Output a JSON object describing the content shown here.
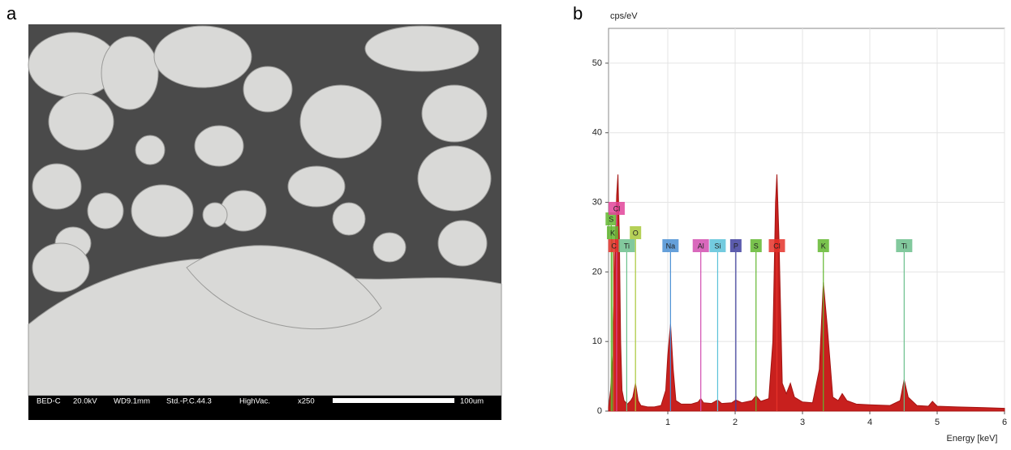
{
  "panels": {
    "a": "a",
    "b": "b"
  },
  "sem": {
    "info": [
      "BED-C",
      "20.0kV",
      "WD9.1mm",
      "Std.-P.C.44.3",
      "HighVac.",
      "x250"
    ],
    "scale_label": "100um"
  },
  "chart_data": {
    "type": "area",
    "y_label": "cps/eV",
    "x_label": "Energy [keV]",
    "color": "#c8201e",
    "x": [
      0.12,
      0.15,
      0.18,
      0.21,
      0.24,
      0.26,
      0.28,
      0.3,
      0.32,
      0.35,
      0.4,
      0.45,
      0.48,
      0.52,
      0.56,
      0.6,
      0.7,
      0.8,
      0.9,
      0.97,
      1.0,
      1.04,
      1.08,
      1.12,
      1.2,
      1.35,
      1.45,
      1.49,
      1.53,
      1.65,
      1.74,
      1.8,
      1.95,
      2.01,
      2.1,
      2.25,
      2.31,
      2.38,
      2.5,
      2.56,
      2.6,
      2.62,
      2.65,
      2.7,
      2.76,
      2.82,
      2.88,
      3.0,
      3.15,
      3.25,
      3.31,
      3.37,
      3.45,
      3.53,
      3.59,
      3.66,
      3.8,
      4.0,
      4.3,
      4.45,
      4.51,
      4.57,
      4.7,
      4.87,
      4.93,
      5.0,
      5.3,
      5.7,
      6.0
    ],
    "values": [
      0.5,
      3,
      8,
      20,
      31,
      34,
      25,
      10,
      3,
      1.5,
      1,
      1.5,
      2,
      4,
      1.5,
      0.8,
      0.6,
      0.6,
      0.8,
      3,
      8,
      12.5,
      6,
      1.5,
      1,
      1,
      1.3,
      1.8,
      1.2,
      1.1,
      1.6,
      1.1,
      1.2,
      1.6,
      1.2,
      1.5,
      2.2,
      1.4,
      1.8,
      10,
      30,
      34,
      25,
      4,
      2.5,
      4,
      2,
      1.3,
      1.2,
      6,
      18.5,
      12,
      2,
      1.5,
      2.5,
      1.5,
      1,
      0.9,
      0.8,
      1.5,
      4.5,
      2,
      0.8,
      0.7,
      1.4,
      0.7,
      0.6,
      0.5,
      0.4
    ],
    "xlim": [
      0.12,
      6
    ],
    "ylim": [
      0,
      55
    ],
    "xticks": [
      1,
      2,
      3,
      4,
      5,
      6
    ],
    "yticks": [
      0,
      10,
      20,
      30,
      40,
      50
    ],
    "grid": true,
    "markers": [
      {
        "label": "S",
        "energy": 0.16,
        "color": "#62b72f"
      },
      {
        "label": "Cl",
        "energy": 0.24,
        "color": "#e2449a"
      },
      {
        "label": "K",
        "energy": 0.18,
        "color": "#62b72f"
      },
      {
        "label": "C",
        "energy": 0.2,
        "color": "#e5332a"
      },
      {
        "label": "Ti",
        "energy": 0.39,
        "color": "#6cc08c"
      },
      {
        "label": "O",
        "energy": 0.52,
        "color": "#a8c83a"
      },
      {
        "label": "Na",
        "energy": 1.04,
        "color": "#4a8fd4"
      },
      {
        "label": "Al",
        "energy": 1.49,
        "color": "#d24db0"
      },
      {
        "label": "Si",
        "energy": 1.74,
        "color": "#5bc2d9"
      },
      {
        "label": "P",
        "energy": 2.01,
        "color": "#3f3f9f"
      },
      {
        "label": "S",
        "energy": 2.31,
        "color": "#62b72f"
      },
      {
        "label": "Cl",
        "energy": 2.62,
        "color": "#e5332a"
      },
      {
        "label": "K",
        "energy": 3.31,
        "color": "#62b72f"
      },
      {
        "label": "Ti",
        "energy": 4.51,
        "color": "#6cc08c"
      }
    ]
  }
}
